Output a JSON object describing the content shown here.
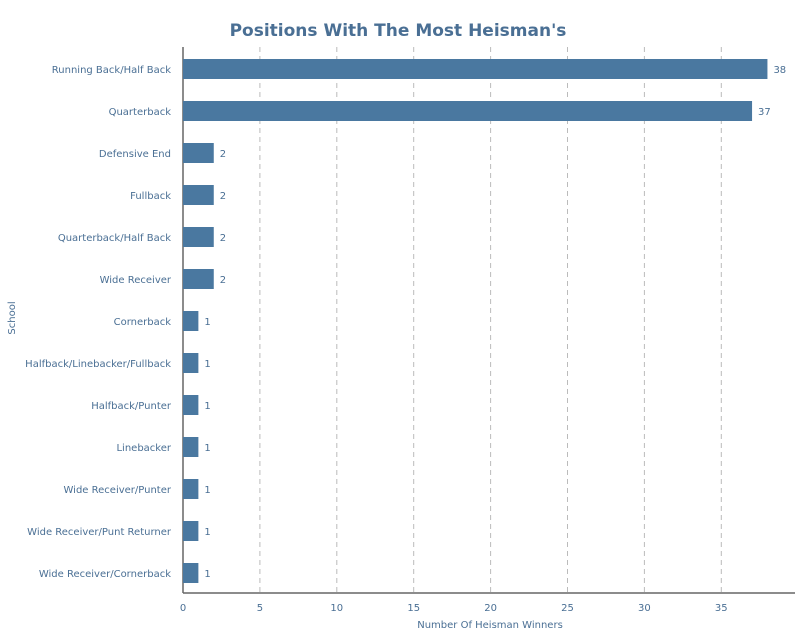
{
  "chart_data": {
    "type": "bar",
    "orientation": "horizontal",
    "title": "Positions With The Most Heisman's",
    "xlabel": "Number Of Heisman Winners",
    "ylabel": "School",
    "categories": [
      "Running Back/Half Back",
      "Quarterback",
      "Defensive End",
      "Fullback",
      "Quarterback/Half Back",
      "Wide Receiver",
      "Cornerback",
      "Halfback/Linebacker/Fullback",
      "Halfback/Punter",
      "Linebacker",
      "Wide Receiver/Punter",
      "Wide Receiver/Punt Returner",
      "Wide Receiver/Cornerback"
    ],
    "values": [
      38,
      37,
      2,
      2,
      2,
      2,
      1,
      1,
      1,
      1,
      1,
      1,
      1
    ],
    "xticks": [
      0,
      5,
      10,
      15,
      20,
      25,
      30,
      35
    ],
    "xlim": [
      0,
      40
    ],
    "grid": "vertical dashed",
    "bar_color": "#4a78a0",
    "text_color": "#4a6f94"
  }
}
